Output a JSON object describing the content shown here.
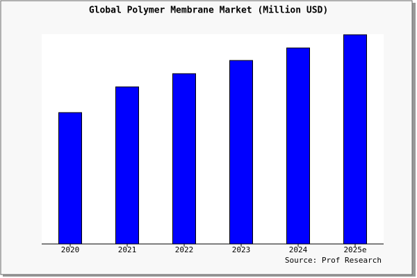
{
  "chart_data": {
    "type": "bar",
    "title": "Global Polymer Membrane Market (Million USD)",
    "categories": [
      "2020",
      "2021",
      "2022",
      "2023",
      "2024",
      "2025e"
    ],
    "values": [
      189,
      226,
      245,
      264,
      282,
      301
    ],
    "color": "#0000ff",
    "ylim": [
      0,
      302
    ],
    "source": "Source: Prof Research"
  }
}
